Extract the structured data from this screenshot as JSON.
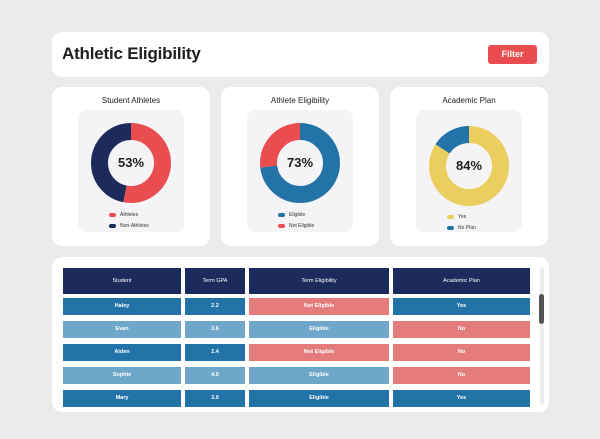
{
  "header": {
    "title": "Athletic Eligibility",
    "filter_label": "Filter"
  },
  "colors": {
    "red": "#ea4d50",
    "navy": "#1c2a5c",
    "blue": "#2372a8",
    "yellow": "#ebcf5e",
    "light_blue": "#6ea7c9",
    "pink": "#e47c7c"
  },
  "cards": [
    {
      "title": "Student Athletes",
      "percent_label": "53%",
      "chart_data": {
        "type": "pie",
        "categories": [
          "Athletes",
          "Non-Athletes"
        ],
        "values": [
          53,
          47
        ],
        "colors": [
          "#ea4d50",
          "#1c2a5c"
        ]
      },
      "legend": [
        {
          "label": "Athletes",
          "color": "#ea4d50"
        },
        {
          "label": "Non-Athletes",
          "color": "#1c2a5c"
        }
      ]
    },
    {
      "title": "Athlete Eligibility",
      "percent_label": "73%",
      "chart_data": {
        "type": "pie",
        "categories": [
          "Eligible",
          "Not Eligible"
        ],
        "values": [
          73,
          27
        ],
        "colors": [
          "#2372a8",
          "#ea4d50"
        ]
      },
      "legend": [
        {
          "label": "Eligible",
          "color": "#2372a8"
        },
        {
          "label": "Not Eligible",
          "color": "#ea4d50"
        }
      ]
    },
    {
      "title": "Academic Plan",
      "percent_label": "84%",
      "chart_data": {
        "type": "pie",
        "categories": [
          "Yes",
          "No Plan"
        ],
        "values": [
          84,
          16
        ],
        "colors": [
          "#ebcf5e",
          "#2372a8"
        ]
      },
      "legend": [
        {
          "label": "Yes",
          "color": "#ebcf5e"
        },
        {
          "label": "No Plan",
          "color": "#2372a8"
        }
      ]
    }
  ],
  "table": {
    "columns": [
      "Student",
      "Term GPA",
      "Term Eligibility",
      "Academic Plan"
    ],
    "rows": [
      {
        "student": "Haley",
        "gpa": "2.2",
        "eligibility": "Not Eligible",
        "plan": "Yes"
      },
      {
        "student": "Evan",
        "gpa": "3.6",
        "eligibility": "Eligible",
        "plan": "No"
      },
      {
        "student": "Aiden",
        "gpa": "2.4",
        "eligibility": "Not Eligible",
        "plan": "No"
      },
      {
        "student": "Sophie",
        "gpa": "4.0",
        "eligibility": "Eligible",
        "plan": "No"
      },
      {
        "student": "Mary",
        "gpa": "3.0",
        "eligibility": "Eligible",
        "plan": "Yes"
      }
    ]
  }
}
